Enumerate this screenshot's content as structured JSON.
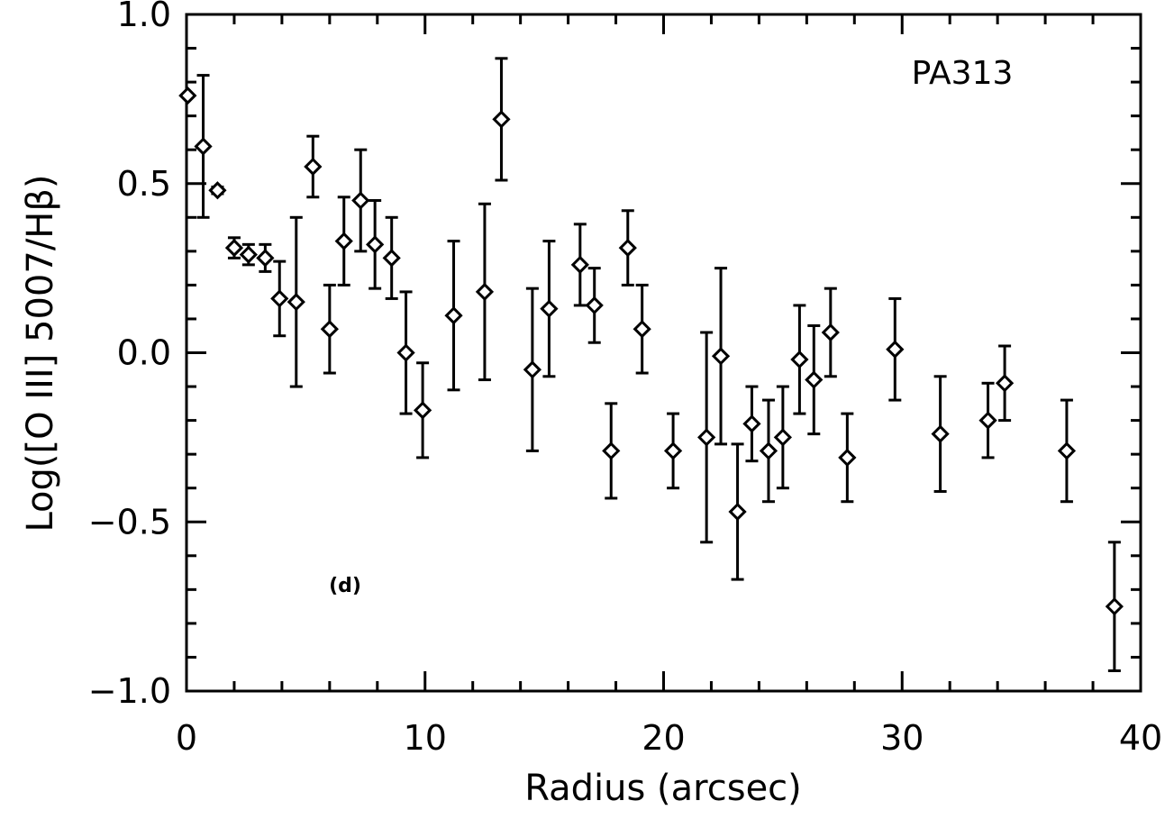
{
  "chart_data": {
    "type": "scatter",
    "xlabel": "Radius (arcsec)",
    "ylabel": "Log([O III] 5007/Hβ)",
    "xlim": [
      0,
      40
    ],
    "ylim": [
      -1.0,
      1.0
    ],
    "xticks": [
      0,
      10,
      20,
      30,
      40
    ],
    "xtick_labels": [
      "0",
      "10",
      "20",
      "30",
      "40"
    ],
    "yticks": [
      -1.0,
      -0.5,
      0.0,
      0.5,
      1.0
    ],
    "ytick_labels": [
      "−1.0",
      "−0.5",
      "0.0",
      "0.5",
      "1.0"
    ],
    "annotations": {
      "panel_label": "(d)",
      "position_angle": "PA313"
    },
    "marker": "diamond",
    "grid": false,
    "series": [
      {
        "points": [
          {
            "x": 0.05,
            "y": 0.76,
            "err": 0.0
          },
          {
            "x": 0.7,
            "y": 0.61,
            "err": 0.21
          },
          {
            "x": 1.3,
            "y": 0.48,
            "err": 0.01
          },
          {
            "x": 2.0,
            "y": 0.31,
            "err": 0.03
          },
          {
            "x": 2.6,
            "y": 0.29,
            "err": 0.03
          },
          {
            "x": 3.3,
            "y": 0.28,
            "err": 0.04
          },
          {
            "x": 3.9,
            "y": 0.16,
            "err": 0.11
          },
          {
            "x": 4.6,
            "y": 0.15,
            "err": 0.25
          },
          {
            "x": 5.3,
            "y": 0.55,
            "err": 0.09
          },
          {
            "x": 6.0,
            "y": 0.07,
            "err": 0.13
          },
          {
            "x": 6.6,
            "y": 0.33,
            "err": 0.13
          },
          {
            "x": 7.3,
            "y": 0.45,
            "err": 0.15
          },
          {
            "x": 7.9,
            "y": 0.32,
            "err": 0.13
          },
          {
            "x": 8.6,
            "y": 0.28,
            "err": 0.12
          },
          {
            "x": 9.2,
            "y": 0.0,
            "err": 0.18
          },
          {
            "x": 9.9,
            "y": -0.17,
            "err": 0.14
          },
          {
            "x": 11.2,
            "y": 0.11,
            "err": 0.22
          },
          {
            "x": 12.5,
            "y": 0.18,
            "err": 0.26
          },
          {
            "x": 13.2,
            "y": 0.69,
            "err": 0.18
          },
          {
            "x": 14.5,
            "y": -0.05,
            "err": 0.24
          },
          {
            "x": 15.2,
            "y": 0.13,
            "err": 0.2
          },
          {
            "x": 16.5,
            "y": 0.26,
            "err": 0.12
          },
          {
            "x": 17.1,
            "y": 0.14,
            "err": 0.11
          },
          {
            "x": 17.8,
            "y": -0.29,
            "err": 0.14
          },
          {
            "x": 18.5,
            "y": 0.31,
            "err": 0.11
          },
          {
            "x": 19.1,
            "y": 0.07,
            "err": 0.13
          },
          {
            "x": 20.4,
            "y": -0.29,
            "err": 0.11
          },
          {
            "x": 21.8,
            "y": -0.25,
            "err": 0.31
          },
          {
            "x": 22.4,
            "y": -0.01,
            "err": 0.26
          },
          {
            "x": 23.1,
            "y": -0.47,
            "err": 0.2
          },
          {
            "x": 23.7,
            "y": -0.21,
            "err": 0.11
          },
          {
            "x": 24.4,
            "y": -0.29,
            "err": 0.15
          },
          {
            "x": 25.0,
            "y": -0.25,
            "err": 0.15
          },
          {
            "x": 25.7,
            "y": -0.02,
            "err": 0.16
          },
          {
            "x": 26.3,
            "y": -0.08,
            "err": 0.16
          },
          {
            "x": 27.0,
            "y": 0.06,
            "err": 0.13
          },
          {
            "x": 27.7,
            "y": -0.31,
            "err": 0.13
          },
          {
            "x": 29.7,
            "y": 0.01,
            "err": 0.15
          },
          {
            "x": 31.6,
            "y": -0.24,
            "err": 0.17
          },
          {
            "x": 33.6,
            "y": -0.2,
            "err": 0.11
          },
          {
            "x": 34.3,
            "y": -0.09,
            "err": 0.11
          },
          {
            "x": 36.9,
            "y": -0.29,
            "err": 0.15
          },
          {
            "x": 38.9,
            "y": -0.75,
            "err": 0.19
          }
        ]
      }
    ]
  }
}
